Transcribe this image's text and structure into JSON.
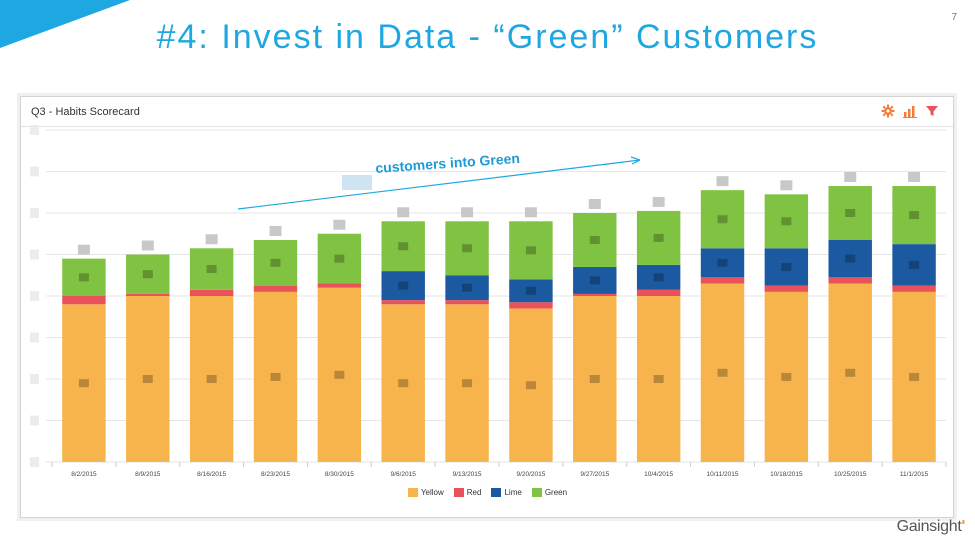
{
  "slide": {
    "title": "#4: Invest in Data - “Green” Customers",
    "number": "7",
    "brand_name": "Gainsight",
    "brand_mark": "ʹ"
  },
  "panel": {
    "title": "Q3 - Habits Scorecard",
    "tools": [
      "gear-icon",
      "bar-chart-icon",
      "filter-icon"
    ]
  },
  "annotation": {
    "text": "customers into Green"
  },
  "colors": {
    "yellow": "#f8b44c",
    "red": "#e9525a",
    "lime": "#1b5aa0",
    "green": "#80c342",
    "accent": "#1ea7e1"
  },
  "chart_data": {
    "type": "bar",
    "stacked": true,
    "title": "Q3 - Habits Scorecard",
    "categories": [
      "8/2/2015",
      "8/9/2015",
      "8/16/2015",
      "8/23/2015",
      "8/30/2015",
      "9/6/2015",
      "9/13/2015",
      "9/20/2015",
      "9/27/2015",
      "10/4/2015",
      "10/11/2015",
      "10/18/2015",
      "10/25/2015",
      "11/1/2015"
    ],
    "ylim": [
      0,
      8
    ],
    "grid": true,
    "legend_position": "bottom",
    "series": [
      {
        "name": "Yellow",
        "color": "#f8b44c",
        "values": [
          3.8,
          4.0,
          4.0,
          4.1,
          4.2,
          3.8,
          3.8,
          3.7,
          4.0,
          4.0,
          4.3,
          4.1,
          4.3,
          4.1
        ]
      },
      {
        "name": "Red",
        "color": "#e9525a",
        "values": [
          0.2,
          0.05,
          0.15,
          0.15,
          0.1,
          0.1,
          0.1,
          0.15,
          0.05,
          0.15,
          0.15,
          0.15,
          0.15,
          0.15
        ]
      },
      {
        "name": "Lime",
        "color": "#1b5aa0",
        "values": [
          0,
          0,
          0,
          0,
          0,
          0.7,
          0.6,
          0.55,
          0.65,
          0.6,
          0.7,
          0.9,
          0.9,
          1.0
        ]
      },
      {
        "name": "Green",
        "color": "#80c342",
        "values": [
          0.9,
          0.95,
          1.0,
          1.1,
          1.2,
          1.2,
          1.3,
          1.4,
          1.3,
          1.3,
          1.4,
          1.3,
          1.3,
          1.4
        ]
      }
    ]
  }
}
